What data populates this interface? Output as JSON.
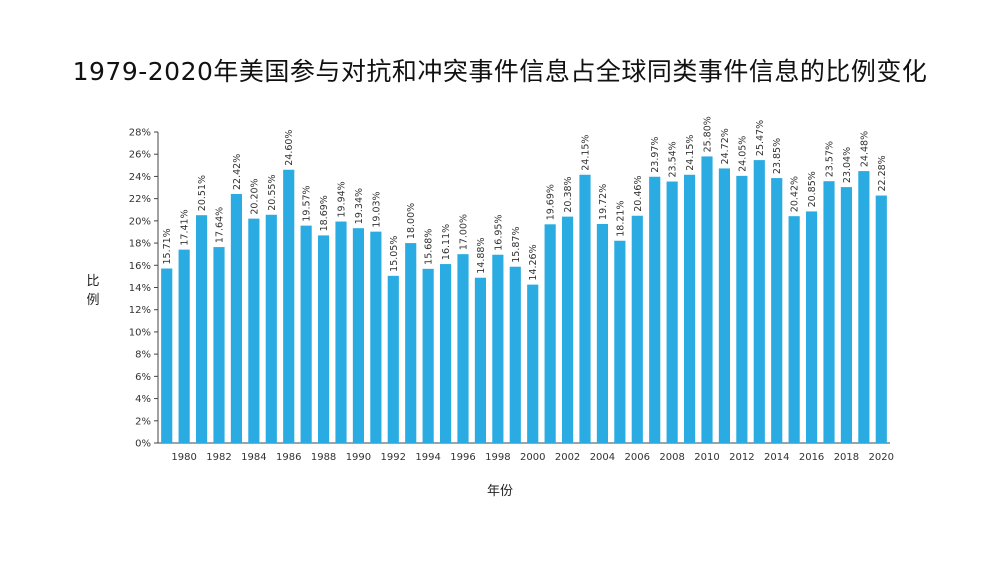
{
  "chart_data": {
    "type": "bar",
    "title": "1979-2020年美国参与对抗和冲突事件信息占全球同类事件信息的比例变化",
    "xlabel": "年份",
    "ylabel": "比例",
    "ylim": [
      0,
      28
    ],
    "y_ticks": [
      "0%",
      "2%",
      "4%",
      "6%",
      "8%",
      "10%",
      "12%",
      "14%",
      "16%",
      "18%",
      "20%",
      "22%",
      "24%",
      "26%",
      "28%"
    ],
    "color": "#2AACE2",
    "categories": [
      1979,
      1980,
      1981,
      1982,
      1983,
      1984,
      1985,
      1986,
      1987,
      1988,
      1989,
      1990,
      1991,
      1992,
      1993,
      1994,
      1995,
      1996,
      1997,
      1998,
      1999,
      2000,
      2001,
      2002,
      2003,
      2004,
      2005,
      2006,
      2007,
      2008,
      2009,
      2010,
      2011,
      2012,
      2013,
      2014,
      2015,
      2016,
      2017,
      2018,
      2019,
      2020
    ],
    "x_tick_labels": [
      "1980",
      "1982",
      "1984",
      "1986",
      "1988",
      "1990",
      "1992",
      "1994",
      "1996",
      "1998",
      "2000",
      "2002",
      "2004",
      "2006",
      "2008",
      "2010",
      "2012",
      "2014",
      "2016",
      "2018",
      "2020"
    ],
    "values": [
      15.71,
      17.41,
      20.51,
      17.64,
      22.42,
      20.2,
      20.55,
      24.6,
      19.57,
      18.69,
      19.94,
      19.34,
      19.03,
      15.05,
      18.0,
      15.68,
      16.11,
      17.0,
      14.88,
      16.95,
      15.87,
      14.26,
      19.69,
      20.38,
      24.15,
      19.72,
      18.21,
      20.46,
      23.97,
      23.54,
      24.15,
      25.8,
      24.72,
      24.05,
      25.47,
      23.85,
      20.42,
      20.85,
      23.57,
      23.04,
      24.48,
      22.28
    ],
    "data_labels": [
      "15.71%",
      "17.41%",
      "20.51%",
      "17.64%",
      "22.42%",
      "20.20%",
      "20.55%",
      "24.60%",
      "19.57%",
      "18.69%",
      "19.94%",
      "19.34%",
      "19.03%",
      "15.05%",
      "18.00%",
      "15.68%",
      "16.11%",
      "17.00%",
      "14.88%",
      "16.95%",
      "15.87%",
      "14.26%",
      "19.69%",
      "20.38%",
      "24.15%",
      "19.72%",
      "18.21%",
      "20.46%",
      "23.97%",
      "23.54%",
      "24.15%",
      "25.80%",
      "24.72%",
      "24.05%",
      "25.47%",
      "23.85%",
      "20.42%",
      "20.85%",
      "23.57%",
      "23.04%",
      "24.48%",
      "22.28%"
    ]
  }
}
